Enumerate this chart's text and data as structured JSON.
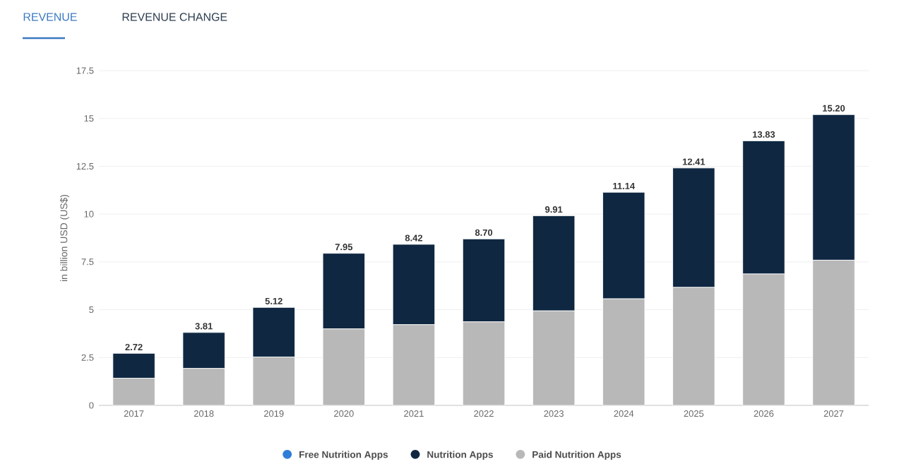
{
  "chart_data": {
    "type": "bar",
    "stacked": true,
    "annotations": [
      "REVENUE",
      "REVENUE CHANGE"
    ],
    "ylabel": "in billion USD (US$)",
    "categories": [
      "2017",
      "2018",
      "2019",
      "2020",
      "2021",
      "2022",
      "2023",
      "2024",
      "2025",
      "2026",
      "2027"
    ],
    "series": [
      {
        "name": "Paid Nutrition Apps",
        "color": "#b8b8b8",
        "values": [
          1.42,
          1.93,
          2.53,
          4.0,
          4.22,
          4.37,
          4.94,
          5.57,
          6.17,
          6.87,
          7.59
        ]
      },
      {
        "name": "Nutrition Apps",
        "color": "#0f2741",
        "values": [
          1.3,
          1.88,
          2.59,
          3.95,
          4.2,
          4.33,
          4.97,
          5.57,
          6.24,
          6.96,
          7.61
        ]
      },
      {
        "name": "Free Nutrition Apps",
        "color": "#2f7ed8",
        "values": [
          null,
          null,
          null,
          null,
          null,
          null,
          null,
          null,
          null,
          null,
          null
        ]
      }
    ],
    "totals": [
      "2.72",
      "3.81",
      "5.12",
      "7.95",
      "8.42",
      "8.70",
      "9.91",
      "11.14",
      "12.41",
      "13.83",
      "15.20"
    ],
    "ylim": [
      0,
      17.5
    ],
    "yticks": [
      0,
      2.5,
      5,
      7.5,
      10,
      12.5,
      15,
      17.5
    ],
    "grid": "y",
    "legend": "bottom"
  }
}
